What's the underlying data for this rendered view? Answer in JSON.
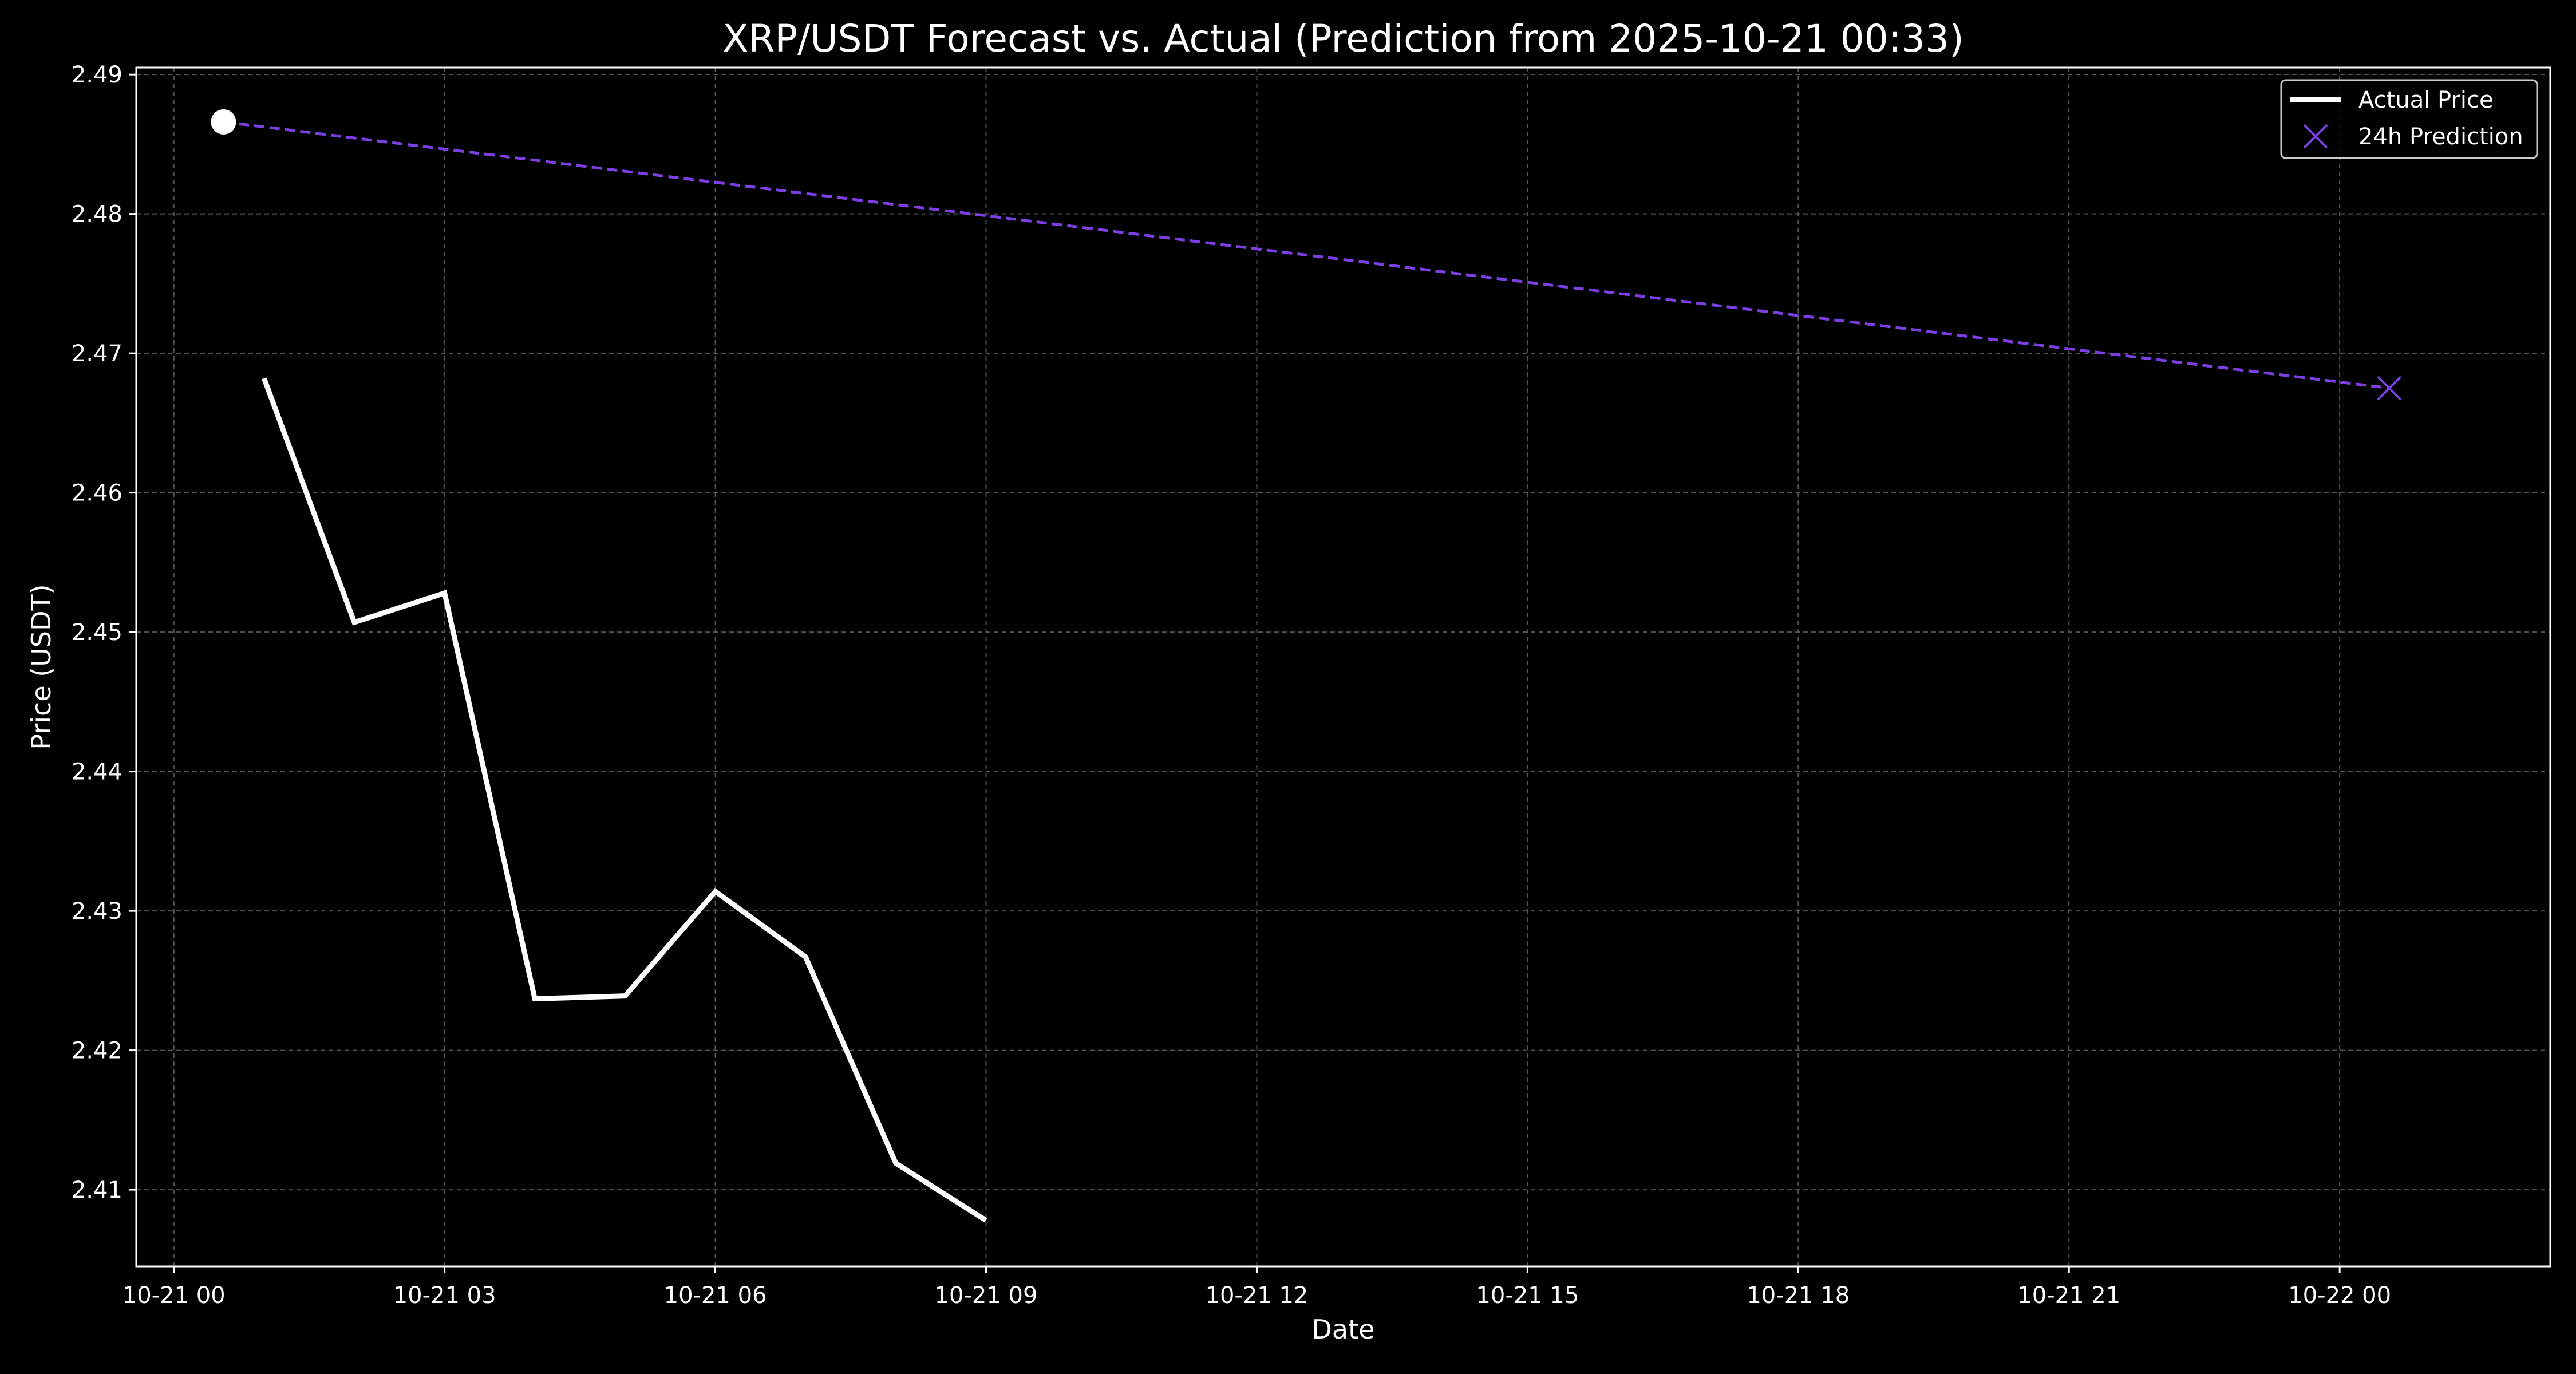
{
  "chart_data": {
    "type": "line",
    "title": "XRP/USDT Forecast vs. Actual (Prediction from 2025-10-21 00:33)",
    "xlabel": "Date",
    "ylabel": "Price (USDT)",
    "xlim": [
      "2025-10-20 23:35",
      "2025-10-22 02:20"
    ],
    "ylim": [
      2.4045,
      2.4905
    ],
    "grid": true,
    "legend_position": "top-right",
    "x_tick_labels": [
      {
        "value": "2025-10-21 00:00",
        "label": "10-21 00"
      },
      {
        "value": "2025-10-21 03:00",
        "label": "10-21 03"
      },
      {
        "value": "2025-10-21 06:00",
        "label": "10-21 06"
      },
      {
        "value": "2025-10-21 09:00",
        "label": "10-21 09"
      },
      {
        "value": "2025-10-21 12:00",
        "label": "10-21 12"
      },
      {
        "value": "2025-10-21 15:00",
        "label": "10-21 15"
      },
      {
        "value": "2025-10-21 18:00",
        "label": "10-21 18"
      },
      {
        "value": "2025-10-21 21:00",
        "label": "10-21 21"
      },
      {
        "value": "2025-10-22 00:00",
        "label": "10-22 00"
      }
    ],
    "y_tick_labels": [
      {
        "value": 2.41,
        "label": "2.41"
      },
      {
        "value": 2.42,
        "label": "2.42"
      },
      {
        "value": 2.43,
        "label": "2.43"
      },
      {
        "value": 2.44,
        "label": "2.44"
      },
      {
        "value": 2.45,
        "label": "2.45"
      },
      {
        "value": 2.46,
        "label": "2.46"
      },
      {
        "value": 2.47,
        "label": "2.47"
      },
      {
        "value": 2.48,
        "label": "2.48"
      },
      {
        "value": 2.49,
        "label": "2.49"
      }
    ],
    "series": [
      {
        "name": "Actual Price",
        "color": "#ffffff",
        "style": "solid",
        "x": [
          "2025-10-21 01:00",
          "2025-10-21 02:00",
          "2025-10-21 03:00",
          "2025-10-21 04:00",
          "2025-10-21 05:00",
          "2025-10-21 06:00",
          "2025-10-21 07:00",
          "2025-10-21 08:00",
          "2025-10-21 09:00"
        ],
        "y": [
          2.4682,
          2.4507,
          2.4528,
          2.4237,
          2.4239,
          2.4314,
          2.4267,
          2.4119,
          2.4078
        ]
      },
      {
        "name": "24h Prediction",
        "color": "#7b3fe4",
        "style": "dashed",
        "marker": "x",
        "x": [
          "2025-10-21 00:33",
          "2025-10-22 00:33"
        ],
        "y": [
          2.4866,
          2.4675
        ]
      }
    ],
    "annotations": [
      {
        "type": "start-point",
        "color": "#ffffff",
        "x": "2025-10-21 00:33",
        "y": 2.4866
      }
    ]
  }
}
